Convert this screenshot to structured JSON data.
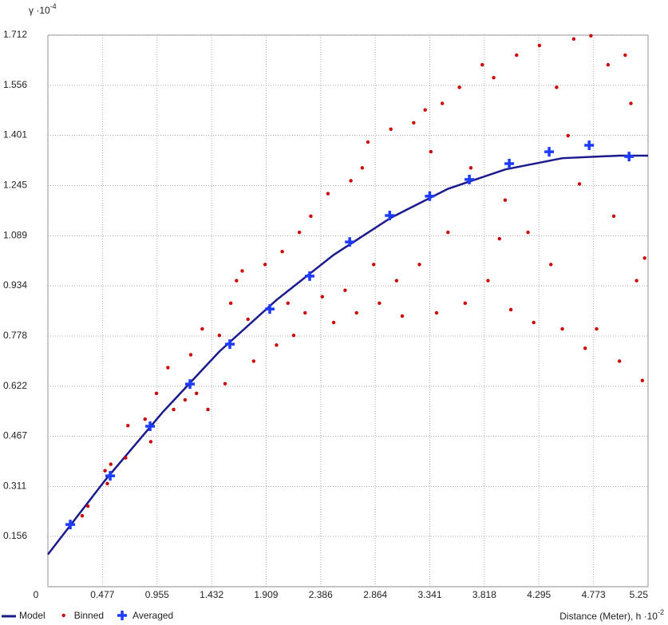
{
  "chart_data": {
    "type": "scatter",
    "y_label": "γ ·10",
    "y_label_exp": "-4",
    "x_label": "Distance (Meter), h ·10",
    "x_label_exp": "-2",
    "xlim": [
      0,
      5.25
    ],
    "ylim": [
      0,
      1.712
    ],
    "xticks": [
      0,
      0.477,
      0.955,
      1.432,
      1.909,
      2.386,
      2.864,
      3.341,
      3.818,
      4.295,
      4.773,
      5.25
    ],
    "yticks": [
      0.156,
      0.311,
      0.467,
      0.622,
      0.778,
      0.934,
      1.089,
      1.245,
      1.401,
      1.556,
      1.712
    ],
    "grid": true,
    "legend": "bottom-left",
    "series": [
      {
        "name": "Model",
        "style": "line",
        "color": "#1a1a8c",
        "x": [
          0,
          0.5,
          1,
          1.5,
          2,
          2.5,
          3,
          3.5,
          4,
          4.5,
          5,
          5.25
        ],
        "y": [
          0.1,
          0.33,
          0.54,
          0.73,
          0.89,
          1.03,
          1.145,
          1.235,
          1.295,
          1.33,
          1.338,
          1.338
        ]
      },
      {
        "name": "Binned",
        "style": "dot",
        "color": "#cc0000",
        "x": [
          0.3,
          0.35,
          0.5,
          0.55,
          0.52,
          0.7,
          0.68,
          0.85,
          0.9,
          0.95,
          1.1,
          1.05,
          1.2,
          1.25,
          1.3,
          1.35,
          1.4,
          1.5,
          1.6,
          1.55,
          1.65,
          1.7,
          1.8,
          1.75,
          1.9,
          2.0,
          2.05,
          2.1,
          2.2,
          2.25,
          2.3,
          2.4,
          2.45,
          2.5,
          2.6,
          2.65,
          2.7,
          2.8,
          2.85,
          2.9,
          3.0,
          3.05,
          3.1,
          3.2,
          3.25,
          3.3,
          3.4,
          3.45,
          3.5,
          3.6,
          3.65,
          3.7,
          3.8,
          3.85,
          3.9,
          4.0,
          4.05,
          4.1,
          4.2,
          4.25,
          4.3,
          4.4,
          4.45,
          4.5,
          4.6,
          4.65,
          4.7,
          4.75,
          4.8,
          4.9,
          4.95,
          5.0,
          5.05,
          5.1,
          5.15,
          5.2,
          5.22,
          4.55,
          3.95,
          3.35,
          2.75,
          2.15
        ],
        "y": [
          0.22,
          0.25,
          0.36,
          0.38,
          0.32,
          0.5,
          0.4,
          0.52,
          0.45,
          0.6,
          0.55,
          0.68,
          0.58,
          0.72,
          0.6,
          0.8,
          0.55,
          0.78,
          0.88,
          0.63,
          0.95,
          0.98,
          0.7,
          0.83,
          1.0,
          0.75,
          1.04,
          0.88,
          1.1,
          0.85,
          1.15,
          0.9,
          1.22,
          0.82,
          0.92,
          1.26,
          0.85,
          1.38,
          1.0,
          0.88,
          1.42,
          0.95,
          0.84,
          1.44,
          1.0,
          1.48,
          0.85,
          1.5,
          1.1,
          1.55,
          0.88,
          1.3,
          1.62,
          0.95,
          1.58,
          1.2,
          0.86,
          1.65,
          1.1,
          0.82,
          1.68,
          1.0,
          1.55,
          0.8,
          1.7,
          1.25,
          0.74,
          1.71,
          0.8,
          1.62,
          1.15,
          0.7,
          1.65,
          1.5,
          0.95,
          0.64,
          1.02,
          1.4,
          1.08,
          1.35,
          1.3,
          0.78
        ]
      },
      {
        "name": "Averaged",
        "style": "cross",
        "color": "#1e3cff",
        "x": [
          0.196,
          0.545,
          0.894,
          1.243,
          1.592,
          1.941,
          2.29,
          2.64,
          2.99,
          3.34,
          3.687,
          4.036,
          4.385,
          4.735,
          5.084
        ],
        "y": [
          0.193,
          0.344,
          0.498,
          0.629,
          0.753,
          0.862,
          0.964,
          1.07,
          1.152,
          1.212,
          1.264,
          1.313,
          1.35,
          1.37,
          1.335
        ]
      }
    ]
  }
}
